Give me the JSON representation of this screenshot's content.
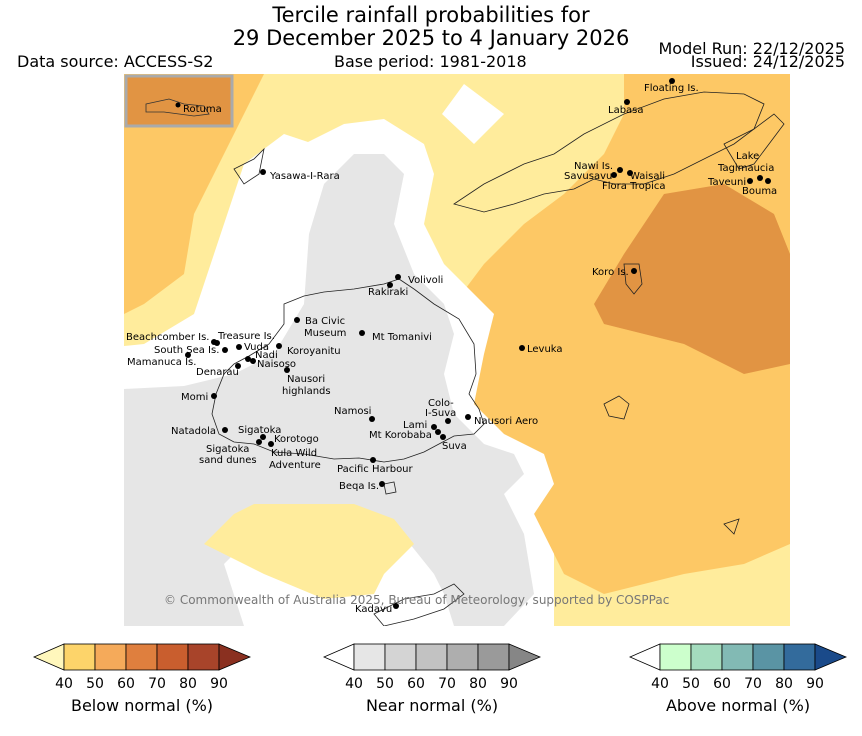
{
  "header": {
    "title_line1": "Tercile rainfall probabilities for",
    "title_line2": "29 December 2025 to 4 January 2026",
    "data_source": "Data source: ACCESS-S2",
    "base_period": "Base period: 1981-2018",
    "model_run": "Model Run: 22/12/2025",
    "issued": "Issued: 24/12/2025"
  },
  "inset": {
    "label": "Rotuma"
  },
  "places": {
    "floating": "Floating Is.",
    "labasa": "Labasa",
    "yasawa": "Yasawa-I-Rara",
    "nawi": "Nawi Is.",
    "savusavu": "Savusavu",
    "waisali": "Waisali",
    "flora": "Flora Tropica",
    "lake1": "Lake",
    "lake2": "Tagimaucia",
    "taveuni": "Taveuni",
    "bouma": "Bouma",
    "volivoli": "Volivoli",
    "rakiraki": "Rakiraki",
    "koro": "Koro Is.",
    "ba1": "Ba Civic",
    "ba2": "Museum",
    "tomanivi": "Mt Tomanivi",
    "beachcomber": "Beachcomber Is.",
    "treasure": "Treasure Is.",
    "southsea": "South Sea Is.",
    "vuda": "Vuda",
    "nadi": "Nadi",
    "koroyanitu": "Koroyanitu",
    "mamanuca": "Mamanuca Is.",
    "naisoso": "Naisoso",
    "denarau": "Denarau",
    "nausori_h1": "Nausori",
    "nausori_h2": "highlands",
    "levuka": "Levuka",
    "momi": "Momi",
    "colo1": "Colo-",
    "colo2": "I-Suva",
    "namosi": "Namosi",
    "lami": "Lami",
    "nausori_aero": "Nausori Aero",
    "natadola": "Natadola",
    "sigatoka": "Sigatoka",
    "korotogo": "Korotogo",
    "korobaba": "Mt Korobaba",
    "suva": "Suva",
    "sig_dunes1": "Sigatoka",
    "sig_dunes2": "sand dunes",
    "kula1": "Kula Wild",
    "kula2": "Adventure",
    "pacific": "Pacific Harbour",
    "beqa": "Beqa Is.",
    "kadavu": "Kadavu"
  },
  "credit": "© Commonwealth of Australia 2025, Bureau of Meteorology, supported by COSPPac",
  "legend": [
    {
      "label": "Below normal (%)",
      "ticks": [
        "40",
        "50",
        "60",
        "70",
        "80",
        "90"
      ],
      "colors": [
        "#fff7bc",
        "#fdd46a",
        "#f5aa5a",
        "#df7f3e",
        "#c95e2e",
        "#a8442a",
        "#8a3020"
      ]
    },
    {
      "label": "Near normal (%)",
      "ticks": [
        "40",
        "50",
        "60",
        "70",
        "80",
        "90"
      ],
      "colors": [
        "#ffffff",
        "#e6e6e6",
        "#d4d4d4",
        "#c2c2c2",
        "#aeaeae",
        "#9a9a9a",
        "#868686"
      ]
    },
    {
      "label": "Above normal (%)",
      "ticks": [
        "40",
        "50",
        "60",
        "70",
        "80",
        "90"
      ],
      "colors": [
        "#ffffff",
        "#ccffcc",
        "#a4dcbe",
        "#82bab4",
        "#5a94a4",
        "#336b9c",
        "#1a4a8a"
      ]
    }
  ],
  "map_colors": {
    "b40": "#ffec9c",
    "b50": "#fdc865",
    "b60": "#e19443",
    "n40": "#e6e6e6",
    "white": "#ffffff"
  }
}
